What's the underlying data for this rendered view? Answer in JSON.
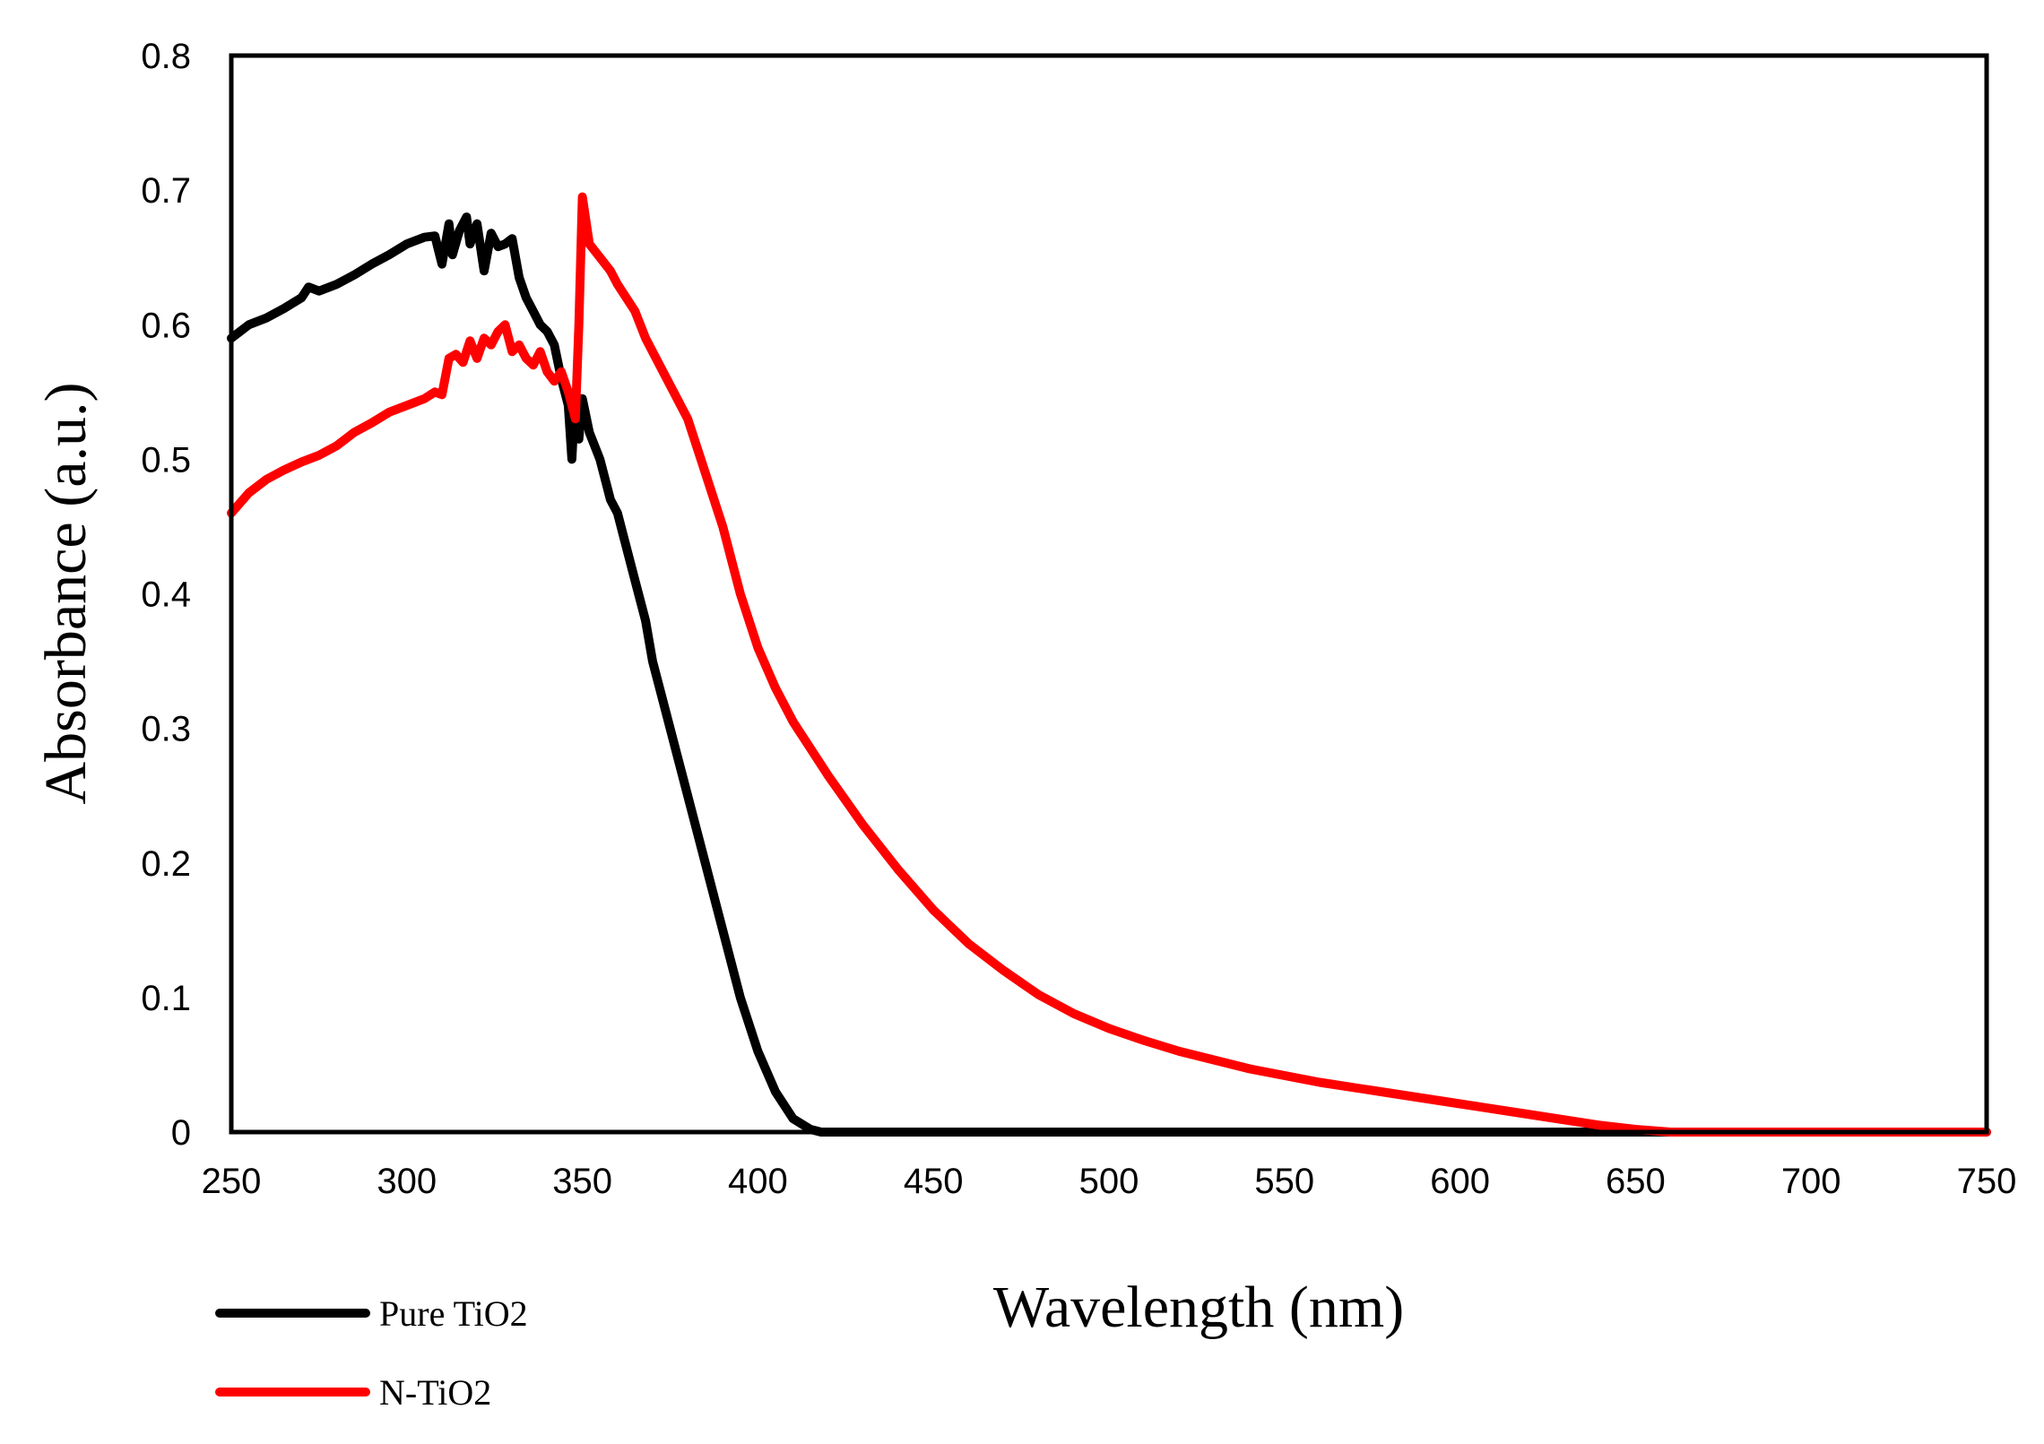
{
  "chart_data": {
    "type": "line",
    "title": "",
    "xlabel": "Wavelength (nm)",
    "ylabel": "Absorbance (a.u.)",
    "xlim": [
      250,
      750
    ],
    "ylim": [
      0,
      0.8
    ],
    "x_ticks": [
      250,
      300,
      350,
      400,
      450,
      500,
      550,
      600,
      650,
      700,
      750
    ],
    "y_ticks": [
      0,
      0.1,
      0.2,
      0.3,
      0.4,
      0.5,
      0.6,
      0.7,
      0.8
    ],
    "x_tick_labels": [
      "250",
      "300",
      "350",
      "400",
      "450",
      "500",
      "550",
      "600",
      "650",
      "700",
      "750"
    ],
    "y_tick_labels": [
      "0",
      "0.1",
      "0.2",
      "0.3",
      "0.4",
      "0.5",
      "0.6",
      "0.7",
      "0.8"
    ],
    "grid": false,
    "legend_position": "bottom-left",
    "series": [
      {
        "name": "Pure TiO2",
        "color": "#000000",
        "x": [
          250,
          255,
          260,
          265,
          270,
          272,
          275,
          280,
          285,
          290,
          295,
          300,
          305,
          308,
          310,
          312,
          313,
          315,
          317,
          318,
          320,
          322,
          324,
          326,
          328,
          330,
          332,
          334,
          336,
          338,
          340,
          342,
          344,
          346,
          347,
          348,
          349,
          350,
          352,
          355,
          358,
          360,
          362,
          365,
          368,
          370,
          375,
          380,
          385,
          390,
          395,
          400,
          405,
          410,
          415,
          418,
          420,
          450,
          500,
          550,
          600,
          650,
          700,
          750
        ],
        "y": [
          0.59,
          0.6,
          0.605,
          0.612,
          0.62,
          0.628,
          0.625,
          0.63,
          0.637,
          0.645,
          0.652,
          0.66,
          0.665,
          0.666,
          0.645,
          0.675,
          0.652,
          0.67,
          0.68,
          0.66,
          0.675,
          0.64,
          0.668,
          0.658,
          0.66,
          0.664,
          0.635,
          0.62,
          0.61,
          0.6,
          0.595,
          0.585,
          0.56,
          0.54,
          0.5,
          0.55,
          0.515,
          0.545,
          0.52,
          0.5,
          0.47,
          0.46,
          0.44,
          0.41,
          0.38,
          0.35,
          0.3,
          0.25,
          0.2,
          0.15,
          0.1,
          0.06,
          0.03,
          0.01,
          0.002,
          0.0,
          0.0,
          0.0,
          0.0,
          0.0,
          0.0,
          0.0,
          0.0,
          0.0
        ]
      },
      {
        "name": "N-TiO2",
        "color": "#ff0000",
        "x": [
          250,
          255,
          260,
          265,
          270,
          275,
          280,
          285,
          290,
          295,
          300,
          305,
          308,
          310,
          312,
          314,
          316,
          318,
          320,
          322,
          324,
          326,
          328,
          330,
          332,
          334,
          336,
          338,
          340,
          342,
          344,
          346,
          347,
          348,
          349,
          350,
          352,
          355,
          358,
          360,
          365,
          368,
          370,
          375,
          380,
          385,
          390,
          395,
          400,
          405,
          410,
          420,
          430,
          440,
          450,
          460,
          470,
          480,
          490,
          500,
          510,
          520,
          540,
          560,
          580,
          600,
          620,
          640,
          650,
          660,
          670,
          700,
          750
        ],
        "y": [
          0.46,
          0.475,
          0.485,
          0.492,
          0.498,
          0.503,
          0.51,
          0.52,
          0.527,
          0.535,
          0.54,
          0.545,
          0.55,
          0.548,
          0.575,
          0.578,
          0.572,
          0.588,
          0.575,
          0.59,
          0.585,
          0.595,
          0.6,
          0.58,
          0.585,
          0.575,
          0.57,
          0.58,
          0.565,
          0.558,
          0.565,
          0.55,
          0.54,
          0.53,
          0.6,
          0.695,
          0.66,
          0.65,
          0.64,
          0.63,
          0.61,
          0.59,
          0.58,
          0.555,
          0.53,
          0.49,
          0.45,
          0.4,
          0.36,
          0.33,
          0.305,
          0.265,
          0.228,
          0.195,
          0.165,
          0.14,
          0.12,
          0.102,
          0.088,
          0.077,
          0.068,
          0.06,
          0.047,
          0.037,
          0.029,
          0.021,
          0.013,
          0.005,
          0.002,
          0.0,
          0.0,
          0.0,
          0.0
        ]
      }
    ]
  }
}
